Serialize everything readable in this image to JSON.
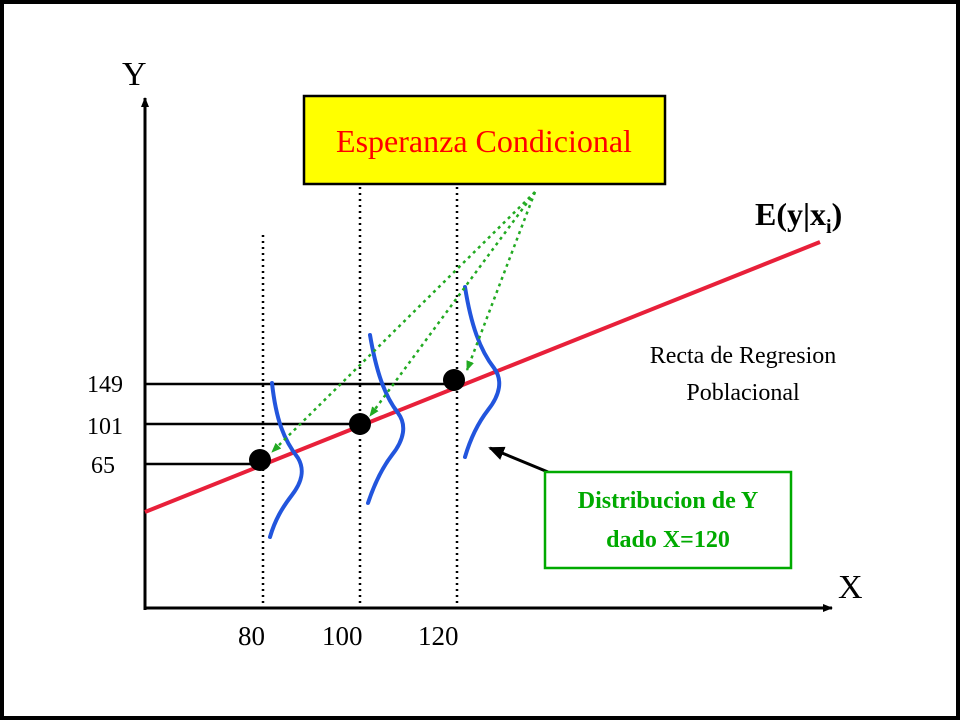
{
  "diagram": {
    "axis_y_label": "Y",
    "axis_x_label": "X",
    "x_ticks": [
      "80",
      "100",
      "120"
    ],
    "y_ticks": [
      "149",
      "101",
      "65"
    ],
    "conditional_box": {
      "text": "Esperanza Condicional",
      "fill_color": "#ffff00",
      "text_color": "#ff0000"
    },
    "line_label": {
      "main": "E(y|x",
      "sub": "i",
      "close": ")"
    },
    "line_description": {
      "line1": "Recta de Regresion",
      "line2": "Poblacional"
    },
    "distribution_box": {
      "line1": "Distribucion de Y",
      "line2": "dado X=120",
      "border_color": "#00aa00",
      "text_color": "#00aa00"
    },
    "colors": {
      "regression_line": "#e8203a",
      "distribution_curves": "#2255dd",
      "guide_arrows": "#22aa22",
      "frame": "#000000"
    }
  }
}
